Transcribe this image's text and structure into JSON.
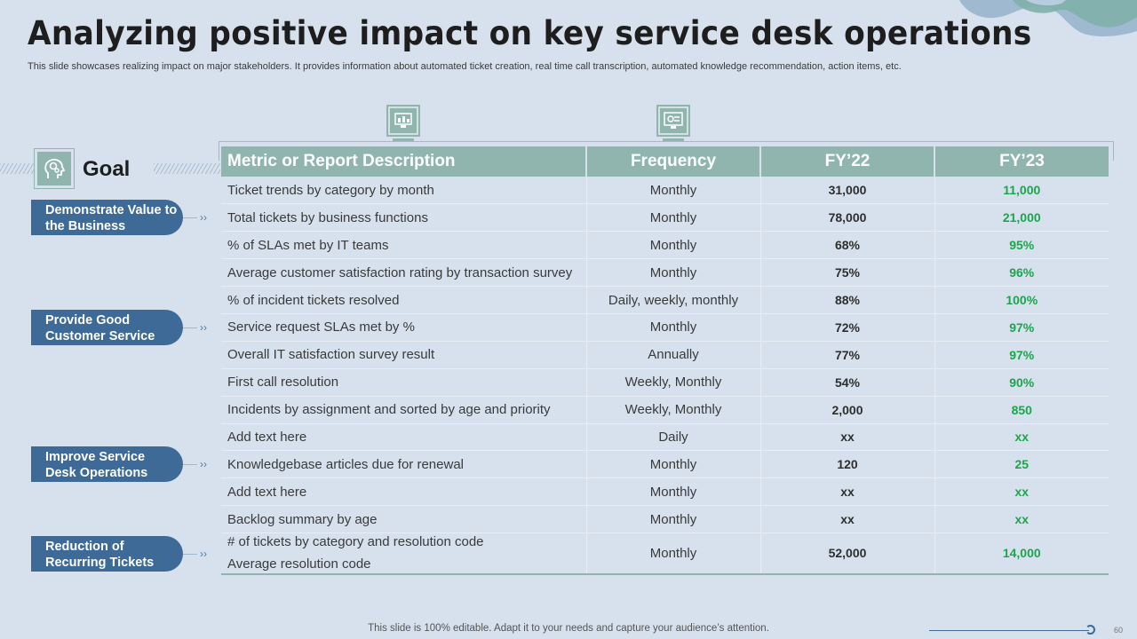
{
  "slide": {
    "title": "Analyzing positive impact on key service desk operations",
    "subtitle": "This slide showcases realizing impact on major stakeholders. It provides information about automated ticket creation, real time call transcription, automated knowledge recommendation, action items, etc.",
    "footer": "This slide is 100% editable. Adapt it to your needs and capture your audience’s attention.",
    "page_number": "60"
  },
  "icons": {
    "header_left": "monitor-chart-icon",
    "header_right": "monitor-presentation-icon",
    "goal": "head-gears-icon"
  },
  "goal": {
    "label": "Goal",
    "items": [
      "Demonstrate Value to the Business",
      "Provide Good Customer Service",
      "Improve Service Desk Operations",
      "Reduction of Recurring Tickets"
    ]
  },
  "table": {
    "headers": [
      "Metric or Report Description",
      "Frequency",
      "FY’22",
      "FY’23"
    ],
    "rows": [
      {
        "desc": "Ticket trends by category by month",
        "freq": "Monthly",
        "fy22": "31,000",
        "fy23": "11,000"
      },
      {
        "desc": "Total tickets by business functions",
        "freq": "Monthly",
        "fy22": "78,000",
        "fy23": "21,000"
      },
      {
        "desc": "% of SLAs met by IT teams",
        "freq": "Monthly",
        "fy22": "68%",
        "fy23": "95%"
      },
      {
        "desc": "Average  customer satisfaction rating by transaction survey",
        "freq": "Monthly",
        "fy22": "75%",
        "fy23": "96%"
      },
      {
        "desc": "% of incident tickets resolved",
        "freq": "Daily, weekly, monthly",
        "fy22": "88%",
        "fy23": "100%"
      },
      {
        "desc": "Service request SLAs met by %",
        "freq": "Monthly",
        "fy22": "72%",
        "fy23": "97%"
      },
      {
        "desc": "Overall IT satisfaction survey result",
        "freq": "Annually",
        "fy22": "77%",
        "fy23": "97%"
      },
      {
        "desc": "First call resolution",
        "freq": "Weekly, Monthly",
        "fy22": "54%",
        "fy23": "90%"
      },
      {
        "desc": "Incidents by assignment and sorted by age and priority",
        "freq": "Weekly, Monthly",
        "fy22": "2,000",
        "fy23": "850"
      },
      {
        "desc": "Add text here",
        "freq": "Daily",
        "fy22": "xx",
        "fy23": "xx"
      },
      {
        "desc": "Knowledgebase articles due for renewal",
        "freq": "Monthly",
        "fy22": "120",
        "fy23": "25"
      },
      {
        "desc": "Add text here",
        "freq": "Monthly",
        "fy22": "xx",
        "fy23": "xx"
      },
      {
        "desc": "Backlog summary by age",
        "freq": "Monthly",
        "fy22": "xx",
        "fy23": "xx"
      }
    ],
    "last_row": {
      "desc_line1": "# of tickets by category and resolution code",
      "desc_line2": "Average  resolution code",
      "freq": "Monthly",
      "fy22": "52,000",
      "fy23": "14,000"
    }
  },
  "colors": {
    "background": "#d6e1ed",
    "teal": "#8fb5ae",
    "navy": "#3d6a96",
    "green": "#1aa64a"
  }
}
